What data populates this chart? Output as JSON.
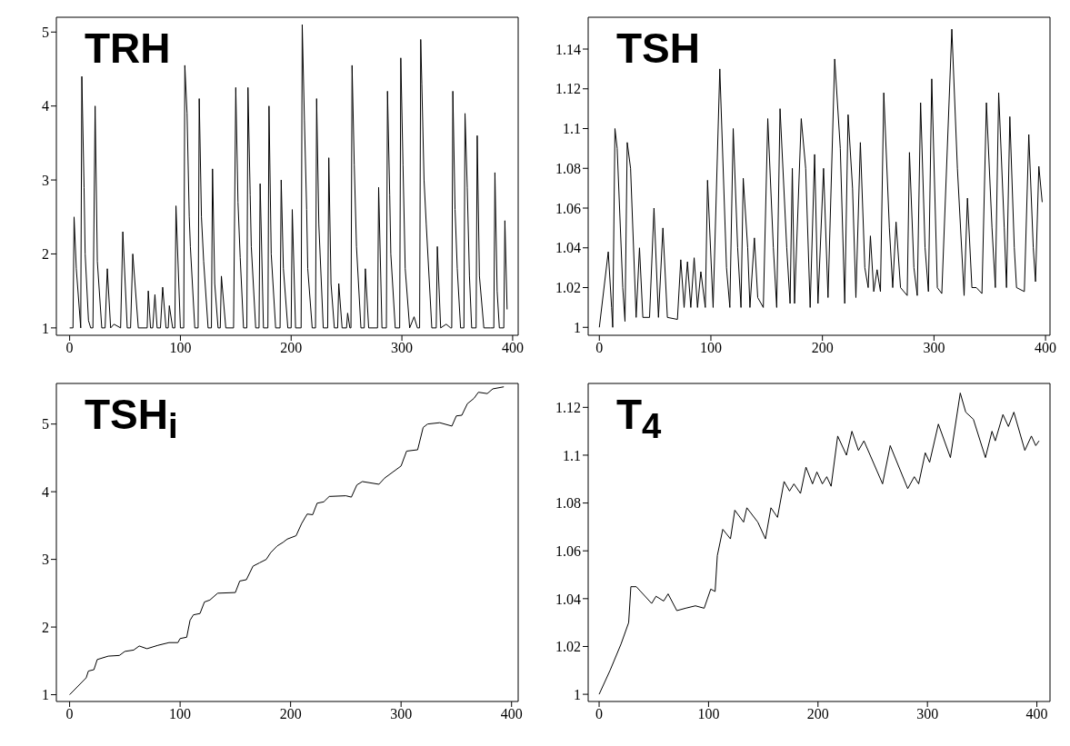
{
  "chart_data": [
    {
      "type": "line",
      "title": "TRH",
      "color": "#000000",
      "xlim": [
        -12,
        405
      ],
      "ylim": [
        0.9,
        5.2
      ],
      "xticks": [
        0,
        100,
        200,
        300,
        400
      ],
      "yticks": [
        1,
        2,
        3,
        4,
        5
      ],
      "x": [
        0,
        3,
        4,
        6,
        10,
        11,
        13,
        14,
        17,
        19,
        21,
        23,
        25,
        29,
        32,
        34,
        37,
        40,
        46,
        48,
        52,
        55,
        57,
        62,
        70,
        71,
        73,
        75,
        77,
        79,
        82,
        84,
        87,
        89,
        90,
        93,
        95,
        96,
        100,
        103,
        104,
        106,
        108,
        109,
        113,
        116,
        117,
        119,
        121,
        125,
        128,
        129,
        131,
        134,
        136,
        137,
        141,
        148,
        150,
        152,
        154,
        157,
        160,
        161,
        163,
        164,
        168,
        171,
        172,
        175,
        179,
        180,
        182,
        186,
        190,
        191,
        193,
        197,
        200,
        201,
        204,
        209,
        210,
        212,
        214,
        215,
        219,
        222,
        223,
        225,
        229,
        233,
        234,
        236,
        239,
        242,
        243,
        246,
        250,
        251,
        253,
        254,
        255,
        257,
        259,
        263,
        266,
        267,
        270,
        278,
        279,
        282,
        286,
        287,
        289,
        290,
        294,
        298,
        299,
        301,
        303,
        307,
        311,
        314,
        316,
        317,
        318,
        320,
        322,
        327,
        331,
        332,
        335,
        340,
        344,
        345,
        346,
        348,
        350,
        353,
        356,
        357,
        359,
        361,
        363,
        367,
        368,
        370,
        374,
        380,
        383,
        384,
        386,
        388,
        392,
        393,
        395
      ],
      "values": [
        1,
        1,
        2.5,
        1.8,
        1,
        4.4,
        2.9,
        2,
        1.1,
        1,
        1,
        4,
        1.9,
        1,
        1,
        1.8,
        1,
        1.05,
        1,
        2.3,
        1,
        1,
        2,
        1,
        1,
        1.5,
        1,
        1,
        1.45,
        1,
        1,
        1.55,
        1,
        1,
        1.3,
        1,
        1,
        2.65,
        1,
        1,
        4.55,
        3.9,
        2.5,
        2.1,
        1,
        1,
        4.1,
        2.5,
        1.9,
        1,
        1,
        3.15,
        1.6,
        1,
        1,
        1.7,
        1,
        1,
        4.25,
        2.7,
        1.95,
        1,
        1,
        4.25,
        2.8,
        2.1,
        1,
        1,
        2.95,
        1,
        1,
        4,
        2,
        1,
        1,
        3,
        1.8,
        1,
        1,
        2.6,
        1,
        1,
        5.1,
        3.8,
        2.6,
        1.8,
        1,
        1,
        4.1,
        2.4,
        1,
        1,
        3.3,
        1.6,
        1,
        1,
        1.6,
        1,
        1,
        1.2,
        1,
        1,
        4.55,
        3.2,
        2.1,
        1,
        1,
        1.8,
        1,
        1,
        2.9,
        1,
        1,
        4.2,
        2.8,
        2,
        1,
        1,
        4.65,
        3.2,
        1.8,
        1,
        1.15,
        1,
        1,
        4.9,
        4.3,
        3,
        2.4,
        1,
        1,
        2.1,
        1,
        1.05,
        1,
        1,
        4.2,
        2.6,
        1.8,
        1,
        1,
        3.9,
        2.9,
        1.7,
        1,
        1,
        3.6,
        1.7,
        1,
        1,
        1,
        3.1,
        1.5,
        1,
        1,
        2.45,
        1.25
      ]
    },
    {
      "type": "line",
      "title": "TSH",
      "color": "#000000",
      "xlim": [
        -10,
        404
      ],
      "ylim": [
        0.996,
        1.156
      ],
      "xticks": [
        0,
        100,
        200,
        300,
        400
      ],
      "yticks": [
        1,
        1.02,
        1.04,
        1.06,
        1.08,
        1.1,
        1.12,
        1.14
      ],
      "x": [
        0,
        8,
        11,
        12,
        14,
        16,
        21,
        23,
        25,
        28,
        33,
        36,
        39,
        45,
        49,
        53,
        57,
        61,
        70,
        73,
        76,
        79,
        82,
        85,
        88,
        91,
        95,
        97,
        102,
        108,
        114,
        117,
        120,
        124,
        127,
        129,
        133,
        135,
        139,
        142,
        147,
        151,
        156,
        159,
        162,
        168,
        171,
        173,
        175,
        181,
        185,
        189,
        193,
        196,
        201,
        205,
        211,
        216,
        220,
        223,
        227,
        230,
        234,
        238,
        241,
        243,
        246,
        249,
        252,
        255,
        260,
        263,
        266,
        270,
        276,
        278,
        282,
        285,
        288,
        292,
        295,
        298,
        303,
        307,
        316,
        321,
        327,
        330,
        334,
        338,
        343,
        347,
        352,
        355,
        358,
        363,
        365,
        368,
        372,
        374,
        381,
        385,
        389,
        391,
        394,
        397
      ],
      "values": [
        1,
        1.038,
        1.01,
        1,
        1.1,
        1.09,
        1.02,
        1.003,
        1.093,
        1.08,
        1.005,
        1.04,
        1.005,
        1.005,
        1.06,
        1.005,
        1.05,
        1.005,
        1.004,
        1.034,
        1.01,
        1.033,
        1.01,
        1.035,
        1.01,
        1.028,
        1.01,
        1.074,
        1.01,
        1.13,
        1.03,
        1.01,
        1.1,
        1.04,
        1.01,
        1.075,
        1.04,
        1.01,
        1.045,
        1.015,
        1.01,
        1.105,
        1.04,
        1.01,
        1.11,
        1.04,
        1.012,
        1.08,
        1.012,
        1.105,
        1.08,
        1.01,
        1.087,
        1.012,
        1.08,
        1.015,
        1.135,
        1.09,
        1.012,
        1.107,
        1.07,
        1.015,
        1.093,
        1.03,
        1.02,
        1.046,
        1.018,
        1.029,
        1.018,
        1.118,
        1.05,
        1.02,
        1.053,
        1.02,
        1.016,
        1.088,
        1.03,
        1.016,
        1.113,
        1.04,
        1.018,
        1.125,
        1.02,
        1.017,
        1.15,
        1.08,
        1.016,
        1.065,
        1.02,
        1.02,
        1.017,
        1.113,
        1.05,
        1.02,
        1.118,
        1.05,
        1.02,
        1.106,
        1.04,
        1.02,
        1.018,
        1.097,
        1.04,
        1.023,
        1.081,
        1.063
      ]
    },
    {
      "type": "line",
      "title": "TSH$_{i}$",
      "color": "#000000",
      "xlim": [
        -12,
        406
      ],
      "ylim": [
        0.9,
        5.6
      ],
      "xticks": [
        0,
        100,
        200,
        300,
        400
      ],
      "yticks": [
        1,
        2,
        3,
        4,
        5
      ],
      "x": [
        0,
        15,
        17,
        22,
        25,
        35,
        45,
        50,
        58,
        63,
        70,
        80,
        90,
        98,
        100,
        106,
        109,
        112,
        118,
        122,
        127,
        134,
        150,
        154,
        160,
        166,
        172,
        178,
        182,
        188,
        193,
        197,
        205,
        210,
        215,
        220,
        224,
        230,
        235,
        250,
        255,
        260,
        265,
        280,
        285,
        300,
        305,
        315,
        320,
        324,
        335,
        346,
        350,
        355,
        360,
        366,
        370,
        378,
        383,
        393
      ],
      "values": [
        1,
        1.25,
        1.35,
        1.37,
        1.52,
        1.57,
        1.58,
        1.64,
        1.66,
        1.72,
        1.68,
        1.73,
        1.77,
        1.77,
        1.83,
        1.85,
        2.1,
        2.18,
        2.2,
        2.37,
        2.4,
        2.5,
        2.51,
        2.68,
        2.7,
        2.9,
        2.95,
        3,
        3.1,
        3.2,
        3.25,
        3.3,
        3.35,
        3.53,
        3.67,
        3.66,
        3.83,
        3.85,
        3.93,
        3.94,
        3.92,
        4.1,
        4.15,
        4.11,
        4.2,
        4.38,
        4.6,
        4.62,
        4.95,
        5,
        5.02,
        4.97,
        5.12,
        5.13,
        5.3,
        5.38,
        5.47,
        5.45,
        5.52,
        5.55
      ]
    },
    {
      "type": "line",
      "title": "T$_{4}$",
      "color": "#000000",
      "xlim": [
        -10,
        412
      ],
      "ylim": [
        0.997,
        1.13
      ],
      "xticks": [
        0,
        100,
        200,
        300,
        400
      ],
      "yticks": [
        1,
        1.02,
        1.04,
        1.06,
        1.08,
        1.1,
        1.12
      ],
      "x": [
        0,
        10,
        20,
        27,
        29,
        34,
        38,
        48,
        52,
        59,
        63,
        71,
        79,
        88,
        96,
        102,
        106,
        108,
        113,
        120,
        124,
        132,
        135,
        145,
        152,
        157,
        163,
        169,
        174,
        178,
        184,
        189,
        195,
        199,
        204,
        208,
        212,
        218,
        226,
        231,
        237,
        242,
        259,
        266,
        282,
        288,
        292,
        298,
        302,
        310,
        321,
        330,
        335,
        342,
        353,
        359,
        362,
        369,
        374,
        379,
        389,
        395,
        399,
        402
      ],
      "values": [
        1,
        1.01,
        1.021,
        1.03,
        1.045,
        1.045,
        1.043,
        1.038,
        1.041,
        1.039,
        1.042,
        1.035,
        1.036,
        1.037,
        1.036,
        1.044,
        1.043,
        1.058,
        1.069,
        1.065,
        1.077,
        1.072,
        1.078,
        1.072,
        1.065,
        1.078,
        1.074,
        1.089,
        1.085,
        1.088,
        1.084,
        1.095,
        1.088,
        1.093,
        1.088,
        1.091,
        1.087,
        1.108,
        1.1,
        1.11,
        1.102,
        1.106,
        1.088,
        1.104,
        1.086,
        1.091,
        1.088,
        1.101,
        1.097,
        1.113,
        1.099,
        1.126,
        1.118,
        1.115,
        1.099,
        1.11,
        1.106,
        1.117,
        1.112,
        1.118,
        1.102,
        1.108,
        1.104,
        1.106
      ]
    }
  ]
}
